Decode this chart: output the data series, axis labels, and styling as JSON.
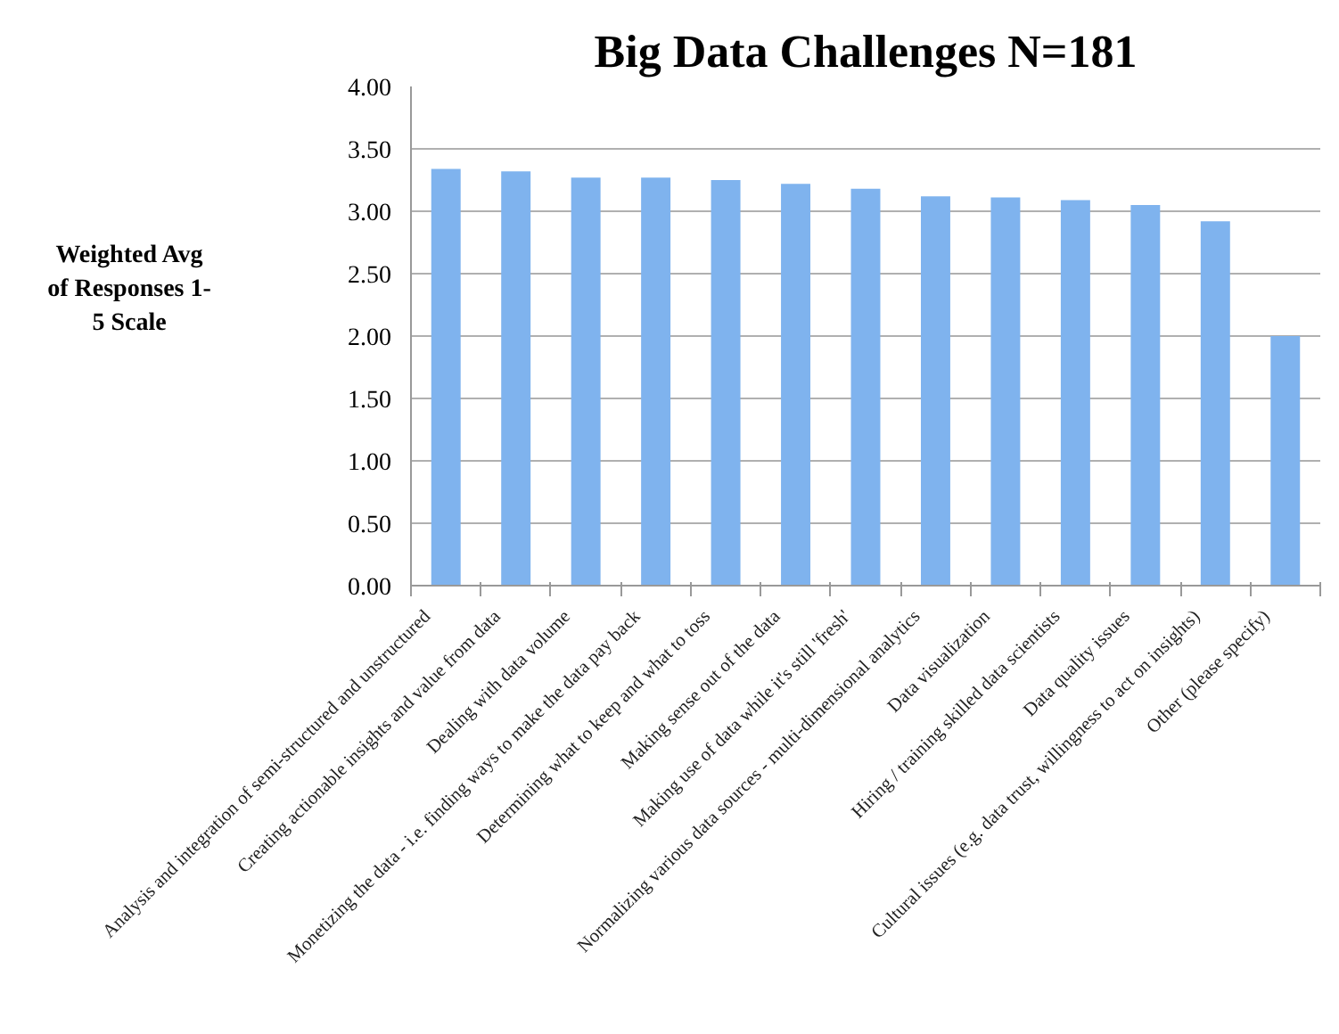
{
  "chart_data": {
    "type": "bar",
    "title": "Big Data Challenges N=181",
    "ylabel": "Weighted Avg of Responses 1-5 Scale",
    "categories": [
      "Analysis and integration of semi-structured and unstructured",
      "Creating actionable insights and value from data",
      "Dealing with data volume",
      "Monetizing the data - i.e. finding ways to make the data pay back",
      "Determining what to keep and what to toss",
      "Making sense out of the data",
      "Making use of data while it's still 'fresh'",
      "Normalizing various data sources - multi-dimensional analytics",
      "Data visualization",
      "Hiring / training skilled data scientists",
      "Data quality issues",
      "Cultural issues (e.g. data trust, willingness to act on insights)",
      "Other (please specify)"
    ],
    "values": [
      3.34,
      3.32,
      3.27,
      3.27,
      3.25,
      3.22,
      3.18,
      3.12,
      3.11,
      3.09,
      3.05,
      2.92,
      2.0
    ],
    "color": "#7fb3ee",
    "ylim": [
      0,
      4
    ],
    "yticks": [
      {
        "value": 0,
        "label": "0.00"
      },
      {
        "value": 0.5,
        "label": "0.50"
      },
      {
        "value": 1,
        "label": "1.00"
      },
      {
        "value": 1.5,
        "label": "1.50"
      },
      {
        "value": 2,
        "label": "2.00"
      },
      {
        "value": 2.5,
        "label": "2.50"
      },
      {
        "value": 3,
        "label": "3.00"
      },
      {
        "value": 3.5,
        "label": "3.50"
      },
      {
        "value": 4,
        "label": "4.00"
      }
    ],
    "grid": "y"
  }
}
